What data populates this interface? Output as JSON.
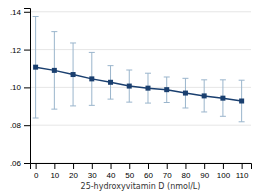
{
  "chart_data": {
    "type": "line",
    "x": [
      0,
      10,
      20,
      30,
      40,
      50,
      60,
      70,
      80,
      90,
      100,
      110
    ],
    "values": [
      0.1107,
      0.109,
      0.1068,
      0.1045,
      0.1027,
      0.1007,
      0.0996,
      0.0988,
      0.097,
      0.0955,
      0.0943,
      0.0928
    ],
    "error_bars": {
      "upper": [
        0.1375,
        0.1295,
        0.1235,
        0.1185,
        0.1115,
        0.1092,
        0.1075,
        0.1055,
        0.1048,
        0.104,
        0.104,
        0.1038
      ],
      "lower": [
        0.0838,
        0.0885,
        0.0902,
        0.0905,
        0.0938,
        0.0922,
        0.0917,
        0.092,
        0.0891,
        0.087,
        0.0847,
        0.0818
      ],
      "color": "#9ab5cc"
    },
    "color": "#1a3f6f",
    "marker": "square",
    "xlabel": "25-hydroxyvitamin D (nmol/L)",
    "xlim": [
      -3,
      115
    ],
    "ylim": [
      0.06,
      0.142
    ],
    "xticks": [
      0,
      10,
      20,
      30,
      40,
      50,
      60,
      70,
      80,
      90,
      100,
      110
    ],
    "yticks": [
      {
        "value": 0.06,
        "label": ".06"
      },
      {
        "value": 0.08,
        "label": ".08"
      },
      {
        "value": 0.1,
        "label": ".10"
      },
      {
        "value": 0.12,
        "label": ".12"
      },
      {
        "value": 0.14,
        "label": ".14"
      }
    ],
    "grid": true
  }
}
